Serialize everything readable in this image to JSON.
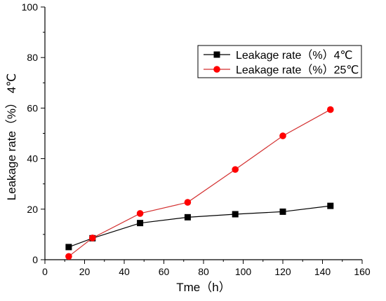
{
  "chart_data": {
    "type": "line",
    "title": "",
    "xlabel": "Tme（h）",
    "ylabel": "Leakage rate（%） 4℃",
    "xlim": [
      0,
      160
    ],
    "ylim": [
      0,
      100
    ],
    "xticks": [
      "0",
      "20",
      "40",
      "60",
      "80",
      "100",
      "120",
      "140",
      "160"
    ],
    "yticks": [
      "0",
      "20",
      "40",
      "60",
      "80",
      "100"
    ],
    "legend_position": "top-right",
    "x": [
      12,
      24,
      48,
      72,
      96,
      120,
      144
    ],
    "series": [
      {
        "name": "Leakage rate（%）4℃",
        "values": [
          5.0,
          8.5,
          14.5,
          16.8,
          18.0,
          19.0,
          21.3
        ],
        "line_color": "#000000",
        "marker": "square",
        "marker_color": "#000000"
      },
      {
        "name": "Leakage rate（%）25℃",
        "values": [
          1.3,
          8.6,
          18.3,
          22.7,
          35.7,
          49.0,
          59.4
        ],
        "line_color": "#d32f2f",
        "marker": "circle",
        "marker_color": "#ff0000"
      }
    ],
    "grid": false
  }
}
